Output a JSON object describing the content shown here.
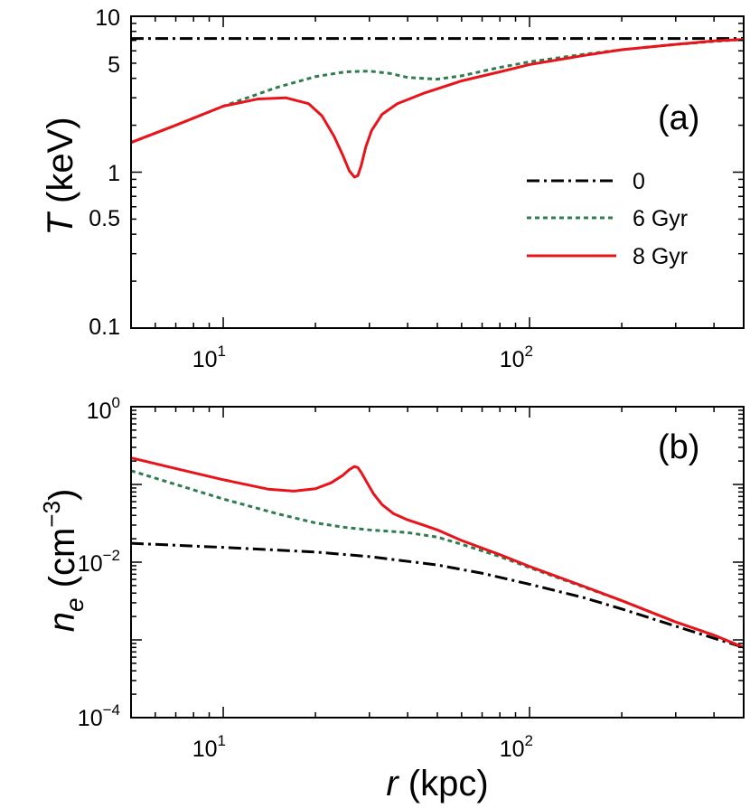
{
  "chart_data": [
    {
      "type": "line",
      "panel_label": "(a)",
      "ylabel": "T",
      "yunit": "(keV)",
      "xscale": "log",
      "yscale": "log",
      "xlim": [
        5,
        500
      ],
      "ylim": [
        0.1,
        10
      ],
      "xticks": [
        {
          "value": 10,
          "base": "10",
          "exp": "1"
        },
        {
          "value": 100,
          "base": "10",
          "exp": "2"
        }
      ],
      "yticks": [
        {
          "value": 0.1,
          "label": "0.1"
        },
        {
          "value": 0.5,
          "label": "0.5"
        },
        {
          "value": 1,
          "label": "1"
        },
        {
          "value": 5,
          "label": "5"
        },
        {
          "value": 10,
          "label": "10"
        }
      ],
      "legend_position": "middle-right",
      "series": [
        {
          "name": "0",
          "color": "#000000",
          "dash": "dashdot",
          "x": [
            5,
            500
          ],
          "y": [
            7.2,
            7.2
          ]
        },
        {
          "name": "6 Gyr",
          "color": "#2e7d4f",
          "dash": "dotted",
          "x": [
            5,
            7,
            10,
            15,
            20,
            25,
            30,
            35,
            40,
            50,
            60,
            80,
            100,
            150,
            200,
            300,
            400,
            500
          ],
          "y": [
            1.55,
            2.0,
            2.65,
            3.5,
            4.1,
            4.4,
            4.45,
            4.3,
            4.05,
            3.95,
            4.15,
            4.7,
            5.1,
            5.7,
            6.1,
            6.6,
            6.9,
            7.1
          ]
        },
        {
          "name": "8 Gyr",
          "color": "#e8141b",
          "dash": "solid",
          "x": [
            5,
            7,
            10,
            13,
            16,
            19,
            21,
            23,
            24.5,
            25.8,
            26.8,
            27.5,
            28.2,
            29.2,
            30.5,
            33,
            37,
            45,
            60,
            80,
            100,
            150,
            200,
            300,
            400,
            500
          ],
          "y": [
            1.55,
            2.0,
            2.65,
            2.95,
            3.0,
            2.75,
            2.3,
            1.7,
            1.3,
            1.02,
            0.93,
            0.95,
            1.1,
            1.45,
            1.85,
            2.35,
            2.75,
            3.2,
            3.85,
            4.4,
            4.9,
            5.6,
            6.1,
            6.6,
            6.95,
            7.1
          ]
        }
      ]
    },
    {
      "type": "line",
      "panel_label": "(b)",
      "ylabel": "n",
      "ylabel_sub": "e",
      "yunit_open": "(cm",
      "yunit_exp": "−3",
      "yunit_close": ")",
      "xlabel": "r",
      "xunit": "(kpc)",
      "xscale": "log",
      "yscale": "log",
      "xlim": [
        5,
        500
      ],
      "ylim": [
        0.0001,
        1
      ],
      "xticks": [
        {
          "value": 10,
          "base": "10",
          "exp": "1"
        },
        {
          "value": 100,
          "base": "10",
          "exp": "2"
        }
      ],
      "yticks": [
        {
          "value": 1,
          "base": "10",
          "exp": "0"
        },
        {
          "value": 0.01,
          "base": "10",
          "exp": "−2"
        },
        {
          "value": 0.0001,
          "base": "10",
          "exp": "−4"
        }
      ],
      "series": [
        {
          "name": "0",
          "color": "#000000",
          "dash": "dashdot",
          "x": [
            5,
            10,
            20,
            30,
            50,
            70,
            100,
            150,
            200,
            300,
            400,
            500
          ],
          "y": [
            0.0175,
            0.0155,
            0.0135,
            0.0118,
            0.0092,
            0.0072,
            0.0052,
            0.0035,
            0.0025,
            0.0015,
            0.00105,
            0.0008
          ]
        },
        {
          "name": "6 Gyr",
          "color": "#2e7d4f",
          "dash": "dotted",
          "x": [
            5,
            7,
            10,
            15,
            20,
            25,
            30,
            40,
            50,
            60,
            80,
            100,
            150,
            200,
            300,
            400,
            500
          ],
          "y": [
            0.15,
            0.1,
            0.065,
            0.042,
            0.032,
            0.028,
            0.026,
            0.024,
            0.021,
            0.017,
            0.0118,
            0.0085,
            0.0048,
            0.0032,
            0.0017,
            0.00115,
            0.0008
          ]
        },
        {
          "name": "8 Gyr",
          "color": "#e8141b",
          "dash": "solid",
          "x": [
            5,
            7,
            10,
            14,
            17,
            20,
            22.5,
            24.5,
            25.8,
            26.8,
            27.5,
            28.3,
            29.5,
            31,
            33,
            36,
            40,
            45,
            50,
            60,
            80,
            100,
            150,
            200,
            300,
            400,
            500
          ],
          "y": [
            0.22,
            0.16,
            0.115,
            0.087,
            0.082,
            0.088,
            0.105,
            0.13,
            0.155,
            0.17,
            0.165,
            0.14,
            0.105,
            0.075,
            0.055,
            0.042,
            0.035,
            0.03,
            0.026,
            0.019,
            0.0125,
            0.0088,
            0.0049,
            0.0032,
            0.0017,
            0.00115,
            0.0008
          ]
        }
      ]
    }
  ]
}
